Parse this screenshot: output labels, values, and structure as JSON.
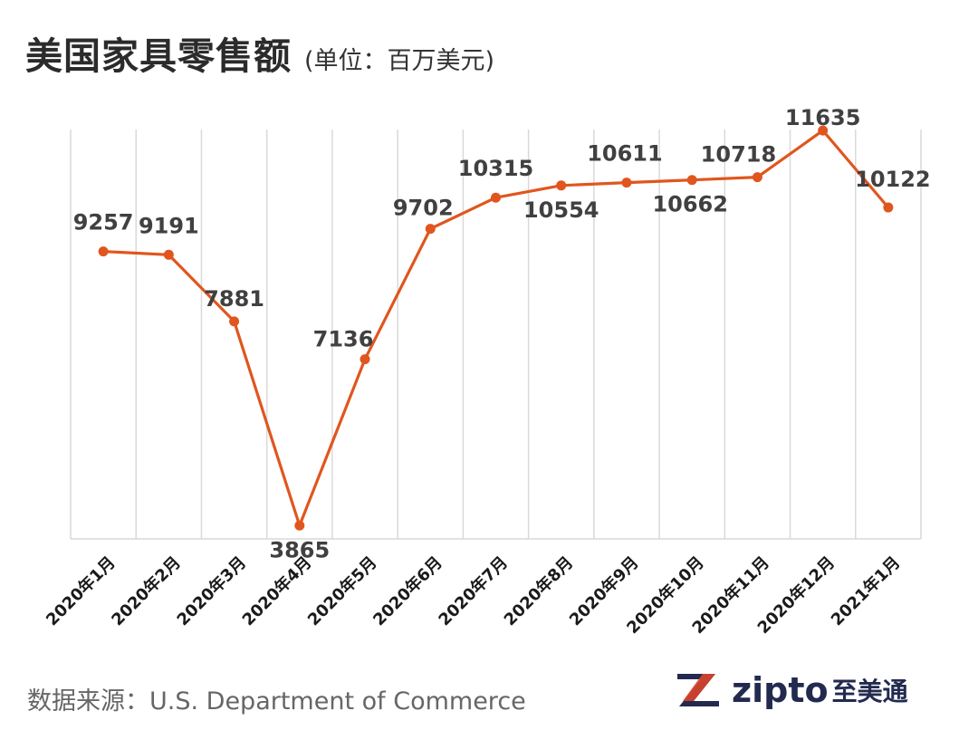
{
  "title": "美国家具零售额",
  "subtitle": "(单位：百万美元)",
  "source": "数据来源：U.S. Department of Commerce",
  "brand": {
    "name": "zipto",
    "name_cn": "至美通",
    "logo_letter": "Z"
  },
  "colors": {
    "line": "#e0561e",
    "grid": "#d9d9d9",
    "label": "#404040",
    "axis_label": "#1a1a1a",
    "brand": "#222a4f",
    "brand_accent": "#d8442a"
  },
  "chart_data": {
    "type": "line",
    "categories": [
      "2020年1月",
      "2020年2月",
      "2020年3月",
      "2020年4月",
      "2020年5月",
      "2020年6月",
      "2020年7月",
      "2020年8月",
      "2020年9月",
      "2020年10月",
      "2020年11月",
      "2020年12月",
      "2021年1月"
    ],
    "series": [
      {
        "values": [
          9257,
          9191,
          7881,
          3865,
          7136,
          9702,
          10315,
          10554,
          10611,
          10662,
          10718,
          11635,
          10122
        ]
      }
    ],
    "data_labels": [
      "9257",
      "9191",
      "7881",
      "3865",
      "7136",
      "9702",
      "10315",
      "10554",
      "10611",
      "10662",
      "10718",
      "11635",
      "10122"
    ],
    "grid": "vertical",
    "legend": "none"
  }
}
